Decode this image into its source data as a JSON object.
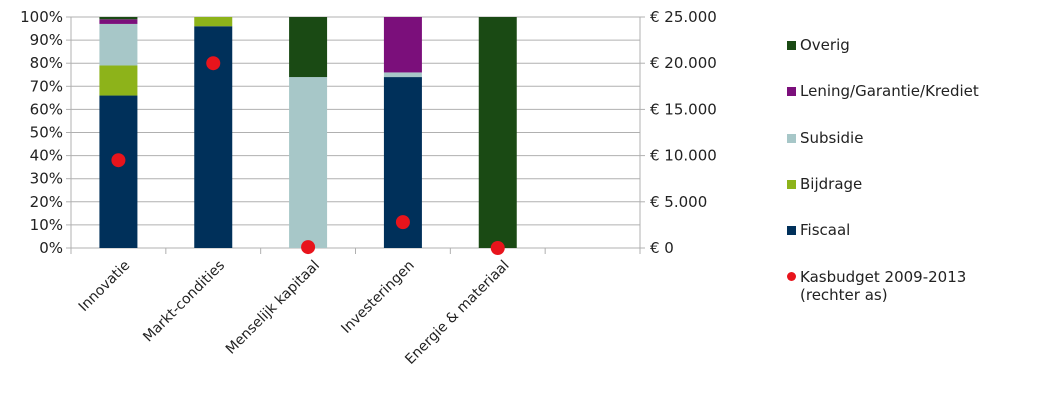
{
  "chart_data": {
    "type": "bar",
    "stacked": true,
    "categories": [
      "Innovatie",
      "Markt-condities",
      "Menselijk kapitaal",
      "Investeringen",
      "Energie & materiaal"
    ],
    "series": [
      {
        "name": "Fiscaal",
        "color": "#00305a",
        "values": [
          66,
          96,
          0,
          74,
          0
        ]
      },
      {
        "name": "Bijdrage",
        "color": "#8db31a",
        "values": [
          13,
          4,
          0,
          0,
          0
        ]
      },
      {
        "name": "Subsidie",
        "color": "#a7c7c8",
        "values": [
          18,
          0,
          74,
          2,
          0
        ]
      },
      {
        "name": "Lening/Garantie/Krediet",
        "color": "#7b0f7b",
        "values": [
          2,
          0,
          0,
          24,
          0
        ]
      },
      {
        "name": "Overig",
        "color": "#1a4a14",
        "values": [
          1,
          0,
          26,
          0,
          100
        ]
      }
    ],
    "secondary_series": {
      "name": "Kasbudget 2009-2013\n(rechter as)",
      "color": "#e8141c",
      "values": [
        9500,
        20000,
        100,
        2800,
        0
      ]
    },
    "y_ticks_left": [
      "0%",
      "10%",
      "20%",
      "30%",
      "40%",
      "50%",
      "60%",
      "70%",
      "80%",
      "90%",
      "100%"
    ],
    "y_ticks_right": [
      "€ 0",
      "€ 5.000",
      "€ 10.000",
      "€ 15.000",
      "€ 20.000",
      "€ 25.000"
    ],
    "ylim_left": [
      0,
      100
    ],
    "ylim_right": [
      0,
      25000
    ],
    "grid": true,
    "legend_position": "right",
    "legend_order": [
      "Overig",
      "Lening/Garantie/Krediet",
      "Subsidie",
      "Bijdrage",
      "Fiscaal"
    ]
  }
}
